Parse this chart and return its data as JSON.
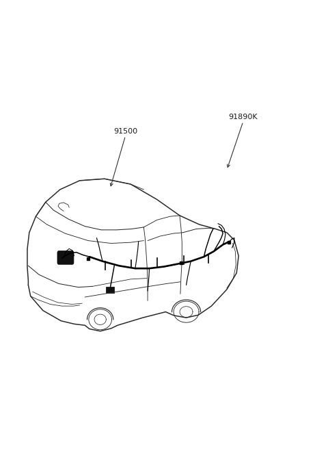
{
  "background_color": "#ffffff",
  "label_91500": "91500",
  "label_91890K": "91890K",
  "color_car": "#2a2a2a",
  "color_wiring": "#000000",
  "fig_width": 4.8,
  "fig_height": 6.56,
  "dpi": 100
}
